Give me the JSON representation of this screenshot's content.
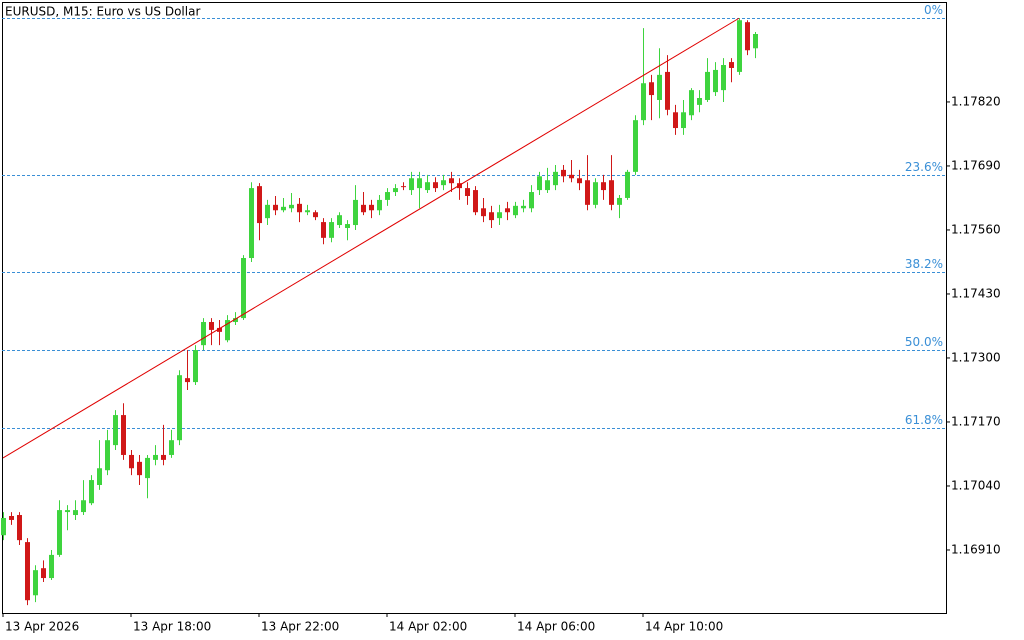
{
  "chart_data": {
    "type": "candlestick",
    "title": "EURUSD, M15:  Euro vs US Dollar",
    "categories": [
      "13 Apr 2026",
      null,
      null,
      null,
      null,
      null,
      null,
      null,
      null,
      null,
      null,
      null,
      null,
      null,
      null,
      null,
      "13 Apr 18:00",
      null,
      null,
      null,
      null,
      null,
      null,
      null,
      null,
      null,
      null,
      null,
      null,
      null,
      null,
      null,
      "13 Apr 22:00",
      null,
      null,
      null,
      null,
      null,
      null,
      null,
      null,
      null,
      null,
      null,
      null,
      null,
      null,
      null,
      "14 Apr 02:00",
      null,
      null,
      null,
      null,
      null,
      null,
      null,
      null,
      null,
      null,
      null,
      null,
      null,
      null,
      null,
      "14 Apr 06:00",
      null,
      null,
      null,
      null,
      null,
      null,
      null,
      null,
      null,
      null,
      null,
      null,
      null,
      null,
      null,
      "14 Apr 10:00",
      null,
      null,
      null,
      null,
      null,
      null,
      null,
      null,
      null,
      null,
      null,
      null,
      null,
      null
    ],
    "open": [
      1.1694,
      1.16979,
      1.16981,
      1.16926,
      1.16818,
      1.16873,
      1.16853,
      1.169,
      1.16987,
      1.16981,
      1.16987,
      1.17005,
      1.17042,
      1.17072,
      1.17123,
      1.17184,
      1.17103,
      1.17089,
      1.17056,
      1.17093,
      1.17103,
      1.17103,
      1.17133,
      1.17259,
      1.17251,
      1.17326,
      1.17373,
      1.17361,
      1.17336,
      1.17373,
      1.17381,
      1.17503,
      1.17649,
      1.17584,
      1.17611,
      1.176,
      1.17604,
      1.17613,
      1.17596,
      1.17596,
      1.17576,
      1.17544,
      1.1757,
      1.17564,
      1.1757,
      1.17611,
      1.17611,
      1.176,
      1.17621,
      1.17637,
      1.17649,
      1.17641,
      1.17645,
      1.17641,
      1.17657,
      1.17651,
      1.17665,
      1.17655,
      1.17645,
      1.17641,
      1.17604,
      1.17596,
      1.17584,
      1.17604,
      1.1759,
      1.17604,
      1.17604,
      1.17641,
      1.17641,
      1.17651,
      1.17682,
      1.17672,
      1.17665,
      1.17661,
      1.17611,
      1.17657,
      1.17661,
      1.17611,
      1.17625,
      1.17678,
      1.17783,
      1.1786,
      1.17824,
      1.17881,
      1.17799,
      1.17767,
      1.17793,
      1.17814,
      1.17824,
      1.1784,
      1.17844,
      1.17901,
      1.17881,
      1.17982,
      1.17929
    ],
    "high": [
      1.16987,
      1.16987,
      1.16987,
      1.16934,
      1.16879,
      1.16889,
      1.1691,
      1.17011,
      1.17001,
      1.17011,
      1.17052,
      1.17062,
      1.17133,
      1.17154,
      1.17194,
      1.17208,
      1.17113,
      1.17103,
      1.17103,
      1.17123,
      1.17164,
      1.17154,
      1.17275,
      1.17316,
      1.17326,
      1.17381,
      1.17381,
      1.17377,
      1.17387,
      1.17393,
      1.17509,
      1.17657,
      1.17655,
      1.17621,
      1.17629,
      1.17625,
      1.17635,
      1.17625,
      1.17611,
      1.176,
      1.17584,
      1.17584,
      1.17596,
      1.1758,
      1.17651,
      1.17637,
      1.17621,
      1.17631,
      1.17645,
      1.17653,
      1.17657,
      1.17678,
      1.17678,
      1.17672,
      1.17667,
      1.17672,
      1.17678,
      1.17665,
      1.17657,
      1.17649,
      1.17625,
      1.17609,
      1.17611,
      1.17617,
      1.17617,
      1.17621,
      1.17651,
      1.17678,
      1.17686,
      1.17692,
      1.17692,
      1.17702,
      1.17682,
      1.17712,
      1.17665,
      1.17672,
      1.17712,
      1.17631,
      1.17682,
      1.17793,
      1.1797,
      1.17875,
      1.17929,
      1.17915,
      1.17814,
      1.17824,
      1.17848,
      1.17844,
      1.17909,
      1.17901,
      1.17909,
      1.17909,
      1.1799,
      1.17986,
      1.17962
    ],
    "low": [
      1.1693,
      1.16961,
      1.1692,
      1.16798,
      1.16804,
      1.16845,
      1.16849,
      1.16896,
      1.1695,
      1.16971,
      1.16981,
      1.17001,
      1.17032,
      1.17062,
      1.17113,
      1.17093,
      1.17062,
      1.17042,
      1.17015,
      1.17082,
      1.17082,
      1.17097,
      1.17123,
      1.17235,
      1.17245,
      1.17316,
      1.17326,
      1.17326,
      1.17332,
      1.17367,
      1.17377,
      1.17495,
      1.17539,
      1.1757,
      1.1759,
      1.17596,
      1.17596,
      1.17576,
      1.1759,
      1.1758,
      1.17531,
      1.17535,
      1.17564,
      1.17539,
      1.1756,
      1.1759,
      1.17584,
      1.1759,
      1.17609,
      1.17629,
      1.17641,
      1.17631,
      1.17604,
      1.17635,
      1.17637,
      1.17641,
      1.17637,
      1.17621,
      1.17611,
      1.1759,
      1.17576,
      1.17564,
      1.1757,
      1.1758,
      1.17584,
      1.17596,
      1.17596,
      1.17631,
      1.17635,
      1.17641,
      1.17657,
      1.17657,
      1.17641,
      1.176,
      1.17604,
      1.17621,
      1.176,
      1.17584,
      1.17621,
      1.17672,
      1.17773,
      1.17783,
      1.17787,
      1.17793,
      1.17753,
      1.17753,
      1.17783,
      1.17799,
      1.1782,
      1.17832,
      1.1782,
      1.1786,
      1.17875,
      1.17915,
      1.17909
    ],
    "close": [
      1.16975,
      1.16971,
      1.1693,
      1.16808,
      1.16869,
      1.16853,
      1.169,
      1.16991,
      1.16991,
      1.16991,
      1.17011,
      1.17052,
      1.17076,
      1.17133,
      1.17184,
      1.17103,
      1.17076,
      1.17062,
      1.17097,
      1.17103,
      1.17093,
      1.17133,
      1.17265,
      1.17251,
      1.17316,
      1.17373,
      1.17357,
      1.17353,
      1.17377,
      1.17381,
      1.17503,
      1.17645,
      1.17574,
      1.17611,
      1.176,
      1.17607,
      1.17611,
      1.17596,
      1.176,
      1.17586,
      1.17544,
      1.17576,
      1.1759,
      1.17572,
      1.17621,
      1.17596,
      1.176,
      1.17621,
      1.17637,
      1.17645,
      1.17647,
      1.17665,
      1.17665,
      1.17657,
      1.17645,
      1.17661,
      1.17655,
      1.17645,
      1.17629,
      1.17596,
      1.17588,
      1.1758,
      1.17596,
      1.17596,
      1.17609,
      1.17609,
      1.17637,
      1.17669,
      1.17661,
      1.17678,
      1.17669,
      1.17665,
      1.17655,
      1.17611,
      1.17657,
      1.17641,
      1.17611,
      1.17625,
      1.17678,
      1.17783,
      1.17858,
      1.17834,
      1.17875,
      1.17804,
      1.17767,
      1.17799,
      1.17844,
      1.17828,
      1.17881,
      1.17885,
      1.17895,
      1.17889,
      1.17986,
      1.17925,
      1.17958
    ],
    "up_color": "#3ed43e",
    "down_color": "#d01818",
    "ylim": [
      1.16782,
      1.18023
    ],
    "yticks": [
      {
        "value": 1.1691,
        "label": "1.16910"
      },
      {
        "value": 1.1704,
        "label": "1.17040"
      },
      {
        "value": 1.1717,
        "label": "1.17170"
      },
      {
        "value": 1.173,
        "label": "1.17300"
      },
      {
        "value": 1.1743,
        "label": "1.17430"
      },
      {
        "value": 1.1756,
        "label": "1.17560"
      },
      {
        "value": 1.1769,
        "label": "1.17690"
      },
      {
        "value": 1.1782,
        "label": "1.17820"
      }
    ],
    "fibonacci": {
      "color": "#3a8fd6",
      "levels": [
        {
          "value": 1.1799,
          "label": "0%"
        },
        {
          "value": 1.17672,
          "label": "23.6%"
        },
        {
          "value": 1.17474,
          "label": "38.2%"
        },
        {
          "value": 1.17316,
          "label": "50.0%"
        },
        {
          "value": 1.17158,
          "label": "61.8%"
        }
      ]
    },
    "trend_line": {
      "color": "#e00000",
      "start": 1.17097,
      "end": 1.1799
    }
  }
}
